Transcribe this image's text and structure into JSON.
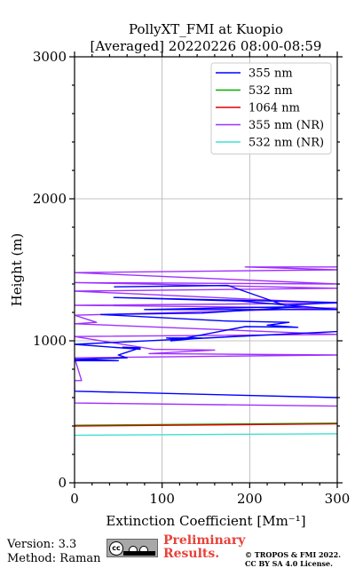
{
  "chart_data": {
    "type": "line",
    "title": "PollyXT_FMI at Kuopio",
    "subtitle": "[Averaged] 20220226 08:00-08:59",
    "xlabel": "Extinction Coefficient [Mm⁻¹]",
    "ylabel": "Height (m)",
    "xlim": [
      0,
      300
    ],
    "ylim": [
      0,
      3000
    ],
    "xticks": [
      "0",
      "100",
      "200",
      "300"
    ],
    "yticks": [
      "0",
      "1000",
      "2000",
      "3000"
    ],
    "grid": true,
    "legend_position": "top-right",
    "series": [
      {
        "name": "355 nm",
        "color": "#0000ff",
        "points": [
          [
            300,
            600
          ],
          [
            0,
            645
          ],
          [
            -1,
            860
          ],
          [
            50,
            860
          ],
          [
            0,
            870
          ],
          [
            60,
            880
          ],
          [
            50,
            900
          ],
          [
            60,
            920
          ],
          [
            75,
            950
          ],
          [
            55,
            955
          ],
          [
            75,
            940
          ],
          [
            0,
            975
          ],
          [
            300,
            1065
          ],
          [
            120,
            1010
          ],
          [
            105,
            1020
          ],
          [
            145,
            1020
          ],
          [
            110,
            1000
          ],
          [
            195,
            1100
          ],
          [
            255,
            1095
          ],
          [
            220,
            1110
          ],
          [
            245,
            1130
          ],
          [
            170,
            1140
          ],
          [
            30,
            1185
          ],
          [
            145,
            1195
          ],
          [
            260,
            1240
          ],
          [
            160,
            1230
          ],
          [
            80,
            1220
          ],
          [
            300,
            1220
          ],
          [
            190,
            1280
          ],
          [
            45,
            1305
          ],
          [
            300,
            1270
          ],
          [
            240,
            1250
          ],
          [
            175,
            1390
          ],
          [
            45,
            1380
          ]
        ]
      },
      {
        "name": "532 nm",
        "color": "#00b000",
        "points": [
          [
            0,
            405
          ],
          [
            300,
            420
          ]
        ]
      },
      {
        "name": "1064 nm",
        "color": "#e00000",
        "points": [
          [
            0,
            400
          ],
          [
            300,
            415
          ]
        ]
      },
      {
        "name": "355 nm (NR)",
        "color": "#a030ff",
        "points": [
          [
            300,
            540
          ],
          [
            0,
            562
          ],
          [
            0,
            720
          ],
          [
            8,
            720
          ],
          [
            0,
            880
          ],
          [
            300,
            900
          ],
          [
            85,
            910
          ],
          [
            160,
            935
          ],
          [
            90,
            940
          ],
          [
            0,
            1030
          ],
          [
            300,
            1045
          ],
          [
            0,
            1120
          ],
          [
            25,
            1130
          ],
          [
            0,
            1180
          ],
          [
            300,
            1230
          ],
          [
            0,
            1250
          ],
          [
            300,
            1265
          ],
          [
            0,
            1350
          ],
          [
            300,
            1370
          ],
          [
            0,
            1410
          ],
          [
            300,
            1400
          ],
          [
            0,
            1480
          ],
          [
            300,
            1500
          ],
          [
            195,
            1520
          ],
          [
            300,
            1520
          ]
        ]
      },
      {
        "name": "532 nm (NR)",
        "color": "#40e0d0",
        "points": [
          [
            0,
            335
          ],
          [
            300,
            345
          ]
        ]
      }
    ]
  },
  "footer": {
    "version": "Version: 3.3",
    "method": "Method: Raman",
    "preliminary_line1": "Preliminary",
    "preliminary_line2": "Results.",
    "copyright_line1": "© TROPOS & FMI 2022.",
    "copyright_line2": "CC BY SA 4.0 License.",
    "badge_logo": "cc",
    "badge_icon": "cc-by-sa-badge-icon"
  }
}
